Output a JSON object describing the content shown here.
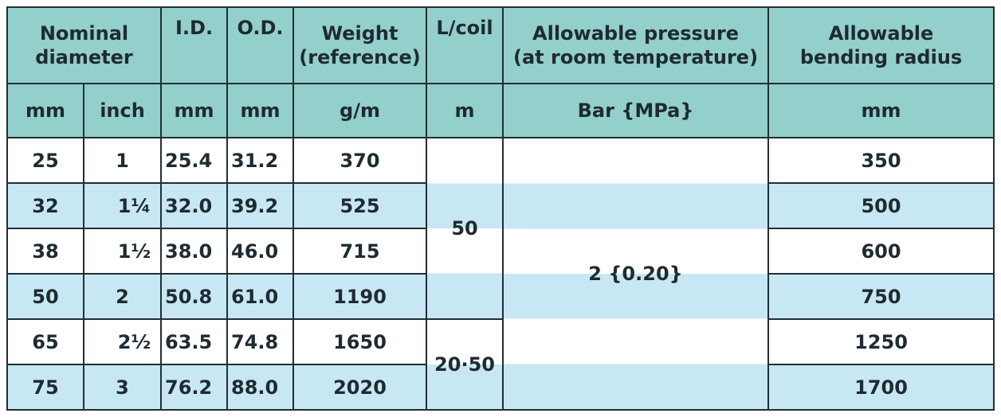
{
  "header": {
    "nominal_diameter": [
      "Nominal",
      "diameter"
    ],
    "id": "I.D.",
    "od": "O.D.",
    "weight": [
      "Weight",
      "(reference)"
    ],
    "lcoil": "L/coil",
    "pressure": [
      "Allowable pressure",
      "(at room temperature)"
    ],
    "bending": [
      "Allowable",
      "bending radius"
    ]
  },
  "units": {
    "mm": "mm",
    "inch": "inch",
    "id_mm": "mm",
    "od_mm": "mm",
    "weight": "g/m",
    "lcoil": "m",
    "pressure": "Bar {MPa}",
    "bending": "mm"
  },
  "rows": [
    {
      "mm": "25",
      "inch": "1",
      "id": "25.4",
      "od": "31.2",
      "weight": "370",
      "bending": "350"
    },
    {
      "mm": "32",
      "inch": "1¼",
      "id": "32.0",
      "od": "39.2",
      "weight": "525",
      "bending": "500"
    },
    {
      "mm": "38",
      "inch": "1½",
      "id": "38.0",
      "od": "46.0",
      "weight": "715",
      "bending": "600"
    },
    {
      "mm": "50",
      "inch": "2",
      "id": "50.8",
      "od": "61.0",
      "weight": "1190",
      "bending": "750"
    },
    {
      "mm": "65",
      "inch": "2½",
      "id": "63.5",
      "od": "74.8",
      "weight": "1650",
      "bending": "1250"
    },
    {
      "mm": "75",
      "inch": "3",
      "id": "76.2",
      "od": "88.0",
      "weight": "2020",
      "bending": "1700"
    }
  ],
  "lcoil_groups": [
    "50",
    "20·50"
  ],
  "pressure_value": "2 {0.20}",
  "colors": {
    "header_bg": "#93cfcb",
    "stripe_bg": "#c8e7f4",
    "border": "#222e34"
  }
}
